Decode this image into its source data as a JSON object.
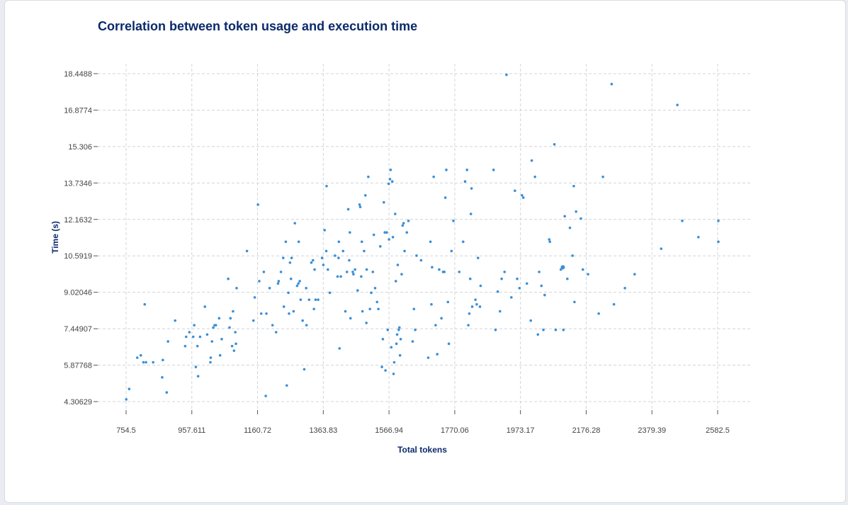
{
  "chart_data": {
    "type": "scatter",
    "title": "Correlation between token usage and execution time",
    "xlabel": "Total tokens",
    "ylabel": "Time (s)",
    "xlim": [
      676,
      2660
    ],
    "ylim": [
      4.30629,
      18.4488
    ],
    "x_ticks": [
      754.5,
      957.611,
      1160.72,
      1363.83,
      1566.94,
      1770.06,
      1973.17,
      2176.28,
      2379.39,
      2582.5
    ],
    "x_tick_labels": [
      "754.5",
      "957.611",
      "1160.72",
      "1363.83",
      "1566.94",
      "1770.06",
      "1973.17",
      "2176.28",
      "2379.39",
      "2582.5"
    ],
    "y_ticks": [
      4.30629,
      5.87768,
      7.44907,
      9.02046,
      10.5919,
      12.1632,
      13.7346,
      15.306,
      16.8774,
      18.4488
    ],
    "y_tick_labels": [
      "4.30629",
      "5.87768",
      "7.44907",
      "9.02046",
      "10.5919",
      "12.1632",
      "13.7346",
      "15.306",
      "16.8774",
      "18.4488"
    ],
    "grid": true,
    "color": "#3a8fd6",
    "points": [
      [
        755,
        4.4
      ],
      [
        764,
        4.85
      ],
      [
        789,
        6.2
      ],
      [
        800,
        6.3
      ],
      [
        808,
        6.0
      ],
      [
        812,
        8.5
      ],
      [
        816,
        6.0
      ],
      [
        838,
        6.0
      ],
      [
        866,
        5.35
      ],
      [
        868,
        6.1
      ],
      [
        880,
        4.7
      ],
      [
        884,
        6.9
      ],
      [
        906,
        7.8
      ],
      [
        937,
        6.7
      ],
      [
        940,
        7.1
      ],
      [
        950,
        7.3
      ],
      [
        962,
        7.1
      ],
      [
        965,
        7.6
      ],
      [
        970,
        5.8
      ],
      [
        975,
        6.7
      ],
      [
        977,
        5.4
      ],
      [
        983,
        7.1
      ],
      [
        998,
        8.4
      ],
      [
        1005,
        7.2
      ],
      [
        1015,
        6.0
      ],
      [
        1016,
        6.2
      ],
      [
        1020,
        6.9
      ],
      [
        1024,
        7.5
      ],
      [
        1028,
        7.6
      ],
      [
        1032,
        7.6
      ],
      [
        1042,
        7.9
      ],
      [
        1045,
        6.3
      ],
      [
        1050,
        7.0
      ],
      [
        1070,
        9.6
      ],
      [
        1074,
        7.5
      ],
      [
        1077,
        7.9
      ],
      [
        1082,
        6.7
      ],
      [
        1085,
        8.2
      ],
      [
        1088,
        6.5
      ],
      [
        1092,
        7.3
      ],
      [
        1094,
        6.8
      ],
      [
        1096,
        9.2
      ],
      [
        1128,
        10.8
      ],
      [
        1148,
        7.8
      ],
      [
        1152,
        8.8
      ],
      [
        1162,
        12.8
      ],
      [
        1166,
        9.5
      ],
      [
        1172,
        8.1
      ],
      [
        1180,
        9.9
      ],
      [
        1186,
        4.55
      ],
      [
        1188,
        8.1
      ],
      [
        1198,
        9.2
      ],
      [
        1207,
        7.6
      ],
      [
        1218,
        7.3
      ],
      [
        1224,
        9.4
      ],
      [
        1226,
        9.5
      ],
      [
        1233,
        9.9
      ],
      [
        1240,
        10.5
      ],
      [
        1242,
        8.4
      ],
      [
        1248,
        11.2
      ],
      [
        1251,
        5.0
      ],
      [
        1256,
        9.0
      ],
      [
        1258,
        8.1
      ],
      [
        1261,
        10.3
      ],
      [
        1264,
        9.6
      ],
      [
        1266,
        10.5
      ],
      [
        1272,
        8.2
      ],
      [
        1276,
        12.0
      ],
      [
        1283,
        9.3
      ],
      [
        1287,
        9.4
      ],
      [
        1288,
        11.2
      ],
      [
        1291,
        9.5
      ],
      [
        1294,
        8.7
      ],
      [
        1300,
        7.8
      ],
      [
        1305,
        5.7
      ],
      [
        1311,
        9.2
      ],
      [
        1312,
        7.6
      ],
      [
        1320,
        8.7
      ],
      [
        1327,
        10.3
      ],
      [
        1332,
        10.4
      ],
      [
        1335,
        8.3
      ],
      [
        1337,
        10.0
      ],
      [
        1340,
        8.7
      ],
      [
        1348,
        8.7
      ],
      [
        1360,
        10.5
      ],
      [
        1364,
        10.2
      ],
      [
        1368,
        11.7
      ],
      [
        1373,
        10.8
      ],
      [
        1374,
        13.6
      ],
      [
        1378,
        10.0
      ],
      [
        1384,
        9.0
      ],
      [
        1400,
        10.6
      ],
      [
        1408,
        9.7
      ],
      [
        1411,
        10.5
      ],
      [
        1412,
        11.2
      ],
      [
        1414,
        6.6
      ],
      [
        1418,
        9.7
      ],
      [
        1425,
        10.8
      ],
      [
        1432,
        8.2
      ],
      [
        1437,
        9.9
      ],
      [
        1441,
        12.6
      ],
      [
        1444,
        10.4
      ],
      [
        1446,
        11.6
      ],
      [
        1448,
        7.9
      ],
      [
        1455,
        9.9
      ],
      [
        1457,
        9.8
      ],
      [
        1462,
        10.0
      ],
      [
        1470,
        9.1
      ],
      [
        1476,
        12.8
      ],
      [
        1478,
        12.7
      ],
      [
        1481,
        9.7
      ],
      [
        1483,
        11.2
      ],
      [
        1485,
        8.2
      ],
      [
        1490,
        10.8
      ],
      [
        1494,
        13.2
      ],
      [
        1497,
        7.7
      ],
      [
        1498,
        10.0
      ],
      [
        1503,
        14.0
      ],
      [
        1508,
        8.3
      ],
      [
        1512,
        9.0
      ],
      [
        1517,
        9.9
      ],
      [
        1520,
        11.5
      ],
      [
        1524,
        9.2
      ],
      [
        1530,
        8.6
      ],
      [
        1534,
        8.3
      ],
      [
        1540,
        11.0
      ],
      [
        1545,
        5.8
      ],
      [
        1548,
        7.0
      ],
      [
        1551,
        12.9
      ],
      [
        1554,
        11.6
      ],
      [
        1556,
        5.65
      ],
      [
        1560,
        11.6
      ],
      [
        1563,
        7.4
      ],
      [
        1566,
        13.7
      ],
      [
        1567,
        11.3
      ],
      [
        1570,
        13.9
      ],
      [
        1572,
        14.3
      ],
      [
        1574,
        6.65
      ],
      [
        1577,
        13.8
      ],
      [
        1579,
        11.4
      ],
      [
        1581,
        5.5
      ],
      [
        1583,
        6.0
      ],
      [
        1586,
        12.4
      ],
      [
        1588,
        9.5
      ],
      [
        1590,
        6.8
      ],
      [
        1592,
        7.2
      ],
      [
        1594,
        10.2
      ],
      [
        1597,
        7.4
      ],
      [
        1599,
        7.5
      ],
      [
        1601,
        6.3
      ],
      [
        1603,
        7.0
      ],
      [
        1606,
        9.8
      ],
      [
        1609,
        11.9
      ],
      [
        1612,
        12.0
      ],
      [
        1615,
        10.8
      ],
      [
        1622,
        11.6
      ],
      [
        1627,
        12.1
      ],
      [
        1640,
        6.9
      ],
      [
        1644,
        8.3
      ],
      [
        1648,
        7.4
      ],
      [
        1652,
        10.6
      ],
      [
        1666,
        10.4
      ],
      [
        1688,
        6.2
      ],
      [
        1695,
        11.2
      ],
      [
        1698,
        8.5
      ],
      [
        1700,
        10.1
      ],
      [
        1705,
        14.0
      ],
      [
        1711,
        7.6
      ],
      [
        1716,
        6.35
      ],
      [
        1722,
        10.0
      ],
      [
        1729,
        7.9
      ],
      [
        1734,
        9.9
      ],
      [
        1738,
        9.9
      ],
      [
        1741,
        13.1
      ],
      [
        1744,
        14.3
      ],
      [
        1749,
        8.6
      ],
      [
        1752,
        6.8
      ],
      [
        1760,
        10.8
      ],
      [
        1766,
        12.1
      ],
      [
        1784,
        9.9
      ],
      [
        1796,
        11.2
      ],
      [
        1802,
        13.8
      ],
      [
        1808,
        14.3
      ],
      [
        1812,
        7.6
      ],
      [
        1815,
        8.1
      ],
      [
        1818,
        9.6
      ],
      [
        1820,
        12.4
      ],
      [
        1822,
        13.5
      ],
      [
        1824,
        8.4
      ],
      [
        1834,
        8.7
      ],
      [
        1838,
        8.5
      ],
      [
        1842,
        10.5
      ],
      [
        1848,
        8.4
      ],
      [
        1850,
        9.3
      ],
      [
        1890,
        14.3
      ],
      [
        1896,
        7.4
      ],
      [
        1903,
        9.05
      ],
      [
        1910,
        8.2
      ],
      [
        1915,
        9.6
      ],
      [
        1924,
        9.9
      ],
      [
        1930,
        18.4
      ],
      [
        1945,
        8.8
      ],
      [
        1956,
        13.4
      ],
      [
        1963,
        9.6
      ],
      [
        1970,
        9.2
      ],
      [
        1978,
        13.2
      ],
      [
        1982,
        13.1
      ],
      [
        1993,
        9.4
      ],
      [
        2005,
        7.8
      ],
      [
        2008,
        14.7
      ],
      [
        2018,
        14.0
      ],
      [
        2027,
        7.2
      ],
      [
        2031,
        9.9
      ],
      [
        2038,
        9.3
      ],
      [
        2044,
        7.4
      ],
      [
        2048,
        8.9
      ],
      [
        2062,
        11.3
      ],
      [
        2064,
        11.2
      ],
      [
        2078,
        15.4
      ],
      [
        2082,
        7.4
      ],
      [
        2098,
        10.0
      ],
      [
        2106,
        7.4
      ],
      [
        2110,
        12.3
      ],
      [
        2118,
        9.6
      ],
      [
        2126,
        11.8
      ],
      [
        2134,
        10.6
      ],
      [
        2138,
        13.6
      ],
      [
        2140,
        8.6
      ],
      [
        2145,
        12.5
      ],
      [
        2160,
        12.2
      ],
      [
        2166,
        10.0
      ],
      [
        2182,
        9.8
      ],
      [
        2215,
        8.1
      ],
      [
        2228,
        14.0
      ],
      [
        2255,
        18.0
      ],
      [
        2262,
        8.5
      ],
      [
        2296,
        9.2
      ],
      [
        2326,
        9.8
      ],
      [
        2408,
        10.9
      ],
      [
        2458,
        17.1
      ],
      [
        2473,
        12.1
      ],
      [
        2523,
        11.4
      ],
      [
        2695,
        12.1
      ],
      [
        2697,
        11.2
      ]
    ],
    "highlighted_point": [
      2104,
      10.1
    ]
  }
}
